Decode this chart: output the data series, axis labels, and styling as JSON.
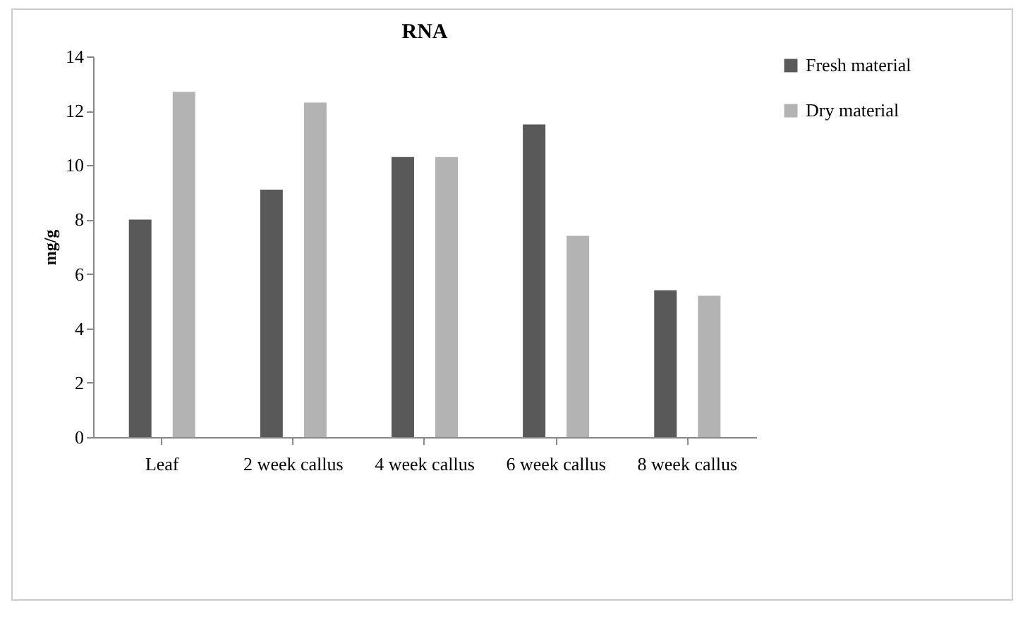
{
  "chart_data": {
    "type": "bar",
    "title": "RNA",
    "ylabel": "mg/g",
    "categories": [
      "Leaf",
      "2 week callus",
      "4 week callus",
      "6 week callus",
      "8 week callus"
    ],
    "series": [
      {
        "name": "Fresh material",
        "color": "#595959",
        "values": [
          8.0,
          9.1,
          10.3,
          11.5,
          5.4
        ]
      },
      {
        "name": "Dry material",
        "color": "#b3b3b3",
        "values": [
          12.7,
          12.3,
          10.3,
          7.4,
          5.2
        ]
      }
    ],
    "ylim": [
      0,
      14
    ],
    "yticks": [
      0,
      2,
      4,
      6,
      8,
      10,
      12,
      14
    ],
    "grid": false,
    "legend": "right"
  }
}
